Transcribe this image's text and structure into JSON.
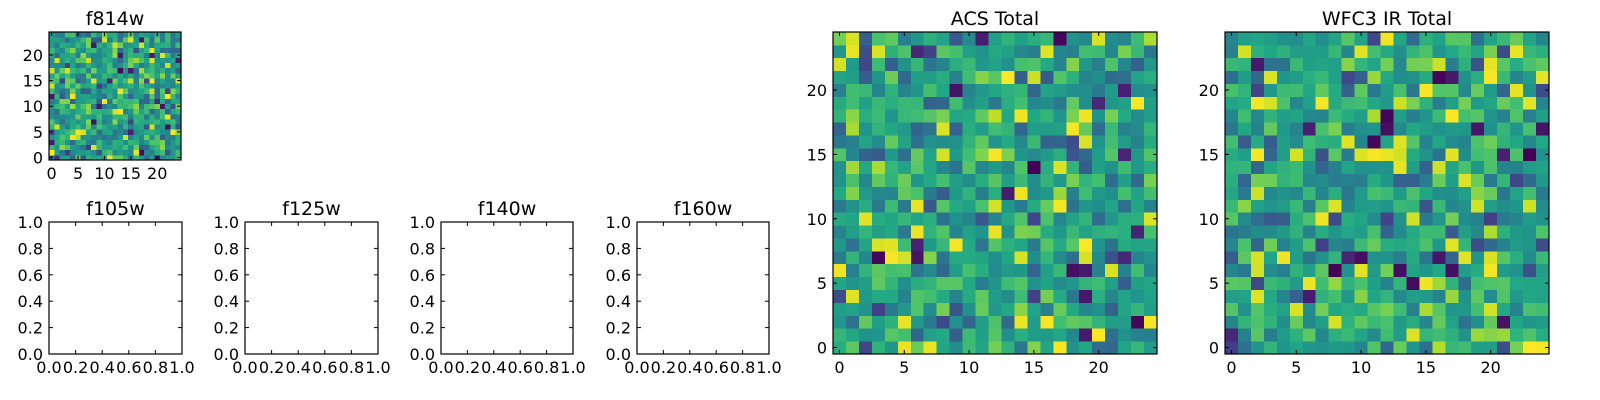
{
  "figure": {
    "background": "#ffffff",
    "colormap": "viridis"
  },
  "chart_data": [
    {
      "type": "heatmap",
      "title": "f814w",
      "xlabel": "",
      "ylabel": "",
      "xlim": [
        -0.5,
        24.5
      ],
      "ylim": [
        -0.5,
        24.5
      ],
      "grid_size": [
        25,
        25
      ],
      "xticks": [
        0,
        5,
        10,
        15,
        20
      ],
      "yticks": [
        0,
        5,
        10,
        15,
        20
      ],
      "colormap": "viridis",
      "value_range": [
        0,
        1
      ],
      "values_note": "noise-like values",
      "seed": 814
    },
    {
      "type": "scatter",
      "title": "f105w",
      "xlabel": "",
      "ylabel": "",
      "xlim": [
        0.0,
        1.0
      ],
      "ylim": [
        0.0,
        1.0
      ],
      "xticks": [
        "0.0",
        "0.2",
        "0.4",
        "0.6",
        "0.8",
        "1.0"
      ],
      "yticks": [
        "0.0",
        "0.2",
        "0.4",
        "0.6",
        "0.8",
        "1.0"
      ],
      "points": []
    },
    {
      "type": "scatter",
      "title": "f125w",
      "xlabel": "",
      "ylabel": "",
      "xlim": [
        0.0,
        1.0
      ],
      "ylim": [
        0.0,
        1.0
      ],
      "xticks": [
        "0.0",
        "0.2",
        "0.4",
        "0.6",
        "0.8",
        "1.0"
      ],
      "yticks": [
        "0.0",
        "0.2",
        "0.4",
        "0.6",
        "0.8",
        "1.0"
      ],
      "points": []
    },
    {
      "type": "scatter",
      "title": "f140w",
      "xlabel": "",
      "ylabel": "",
      "xlim": [
        0.0,
        1.0
      ],
      "ylim": [
        0.0,
        1.0
      ],
      "xticks": [
        "0.0",
        "0.2",
        "0.4",
        "0.6",
        "0.8",
        "1.0"
      ],
      "yticks": [
        "0.0",
        "0.2",
        "0.4",
        "0.6",
        "0.8",
        "1.0"
      ],
      "points": []
    },
    {
      "type": "scatter",
      "title": "f160w",
      "xlabel": "",
      "ylabel": "",
      "xlim": [
        0.0,
        1.0
      ],
      "ylim": [
        0.0,
        1.0
      ],
      "xticks": [
        "0.0",
        "0.2",
        "0.4",
        "0.6",
        "0.8",
        "1.0"
      ],
      "yticks": [
        "0.0",
        "0.2",
        "0.4",
        "0.6",
        "0.8",
        "1.0"
      ],
      "points": []
    },
    {
      "type": "heatmap",
      "title": "ACS Total",
      "xlabel": "",
      "ylabel": "",
      "xlim": [
        -0.5,
        24.5
      ],
      "ylim": [
        -0.5,
        24.5
      ],
      "grid_size": [
        25,
        25
      ],
      "xticks": [
        0,
        5,
        10,
        15,
        20
      ],
      "yticks": [
        0,
        5,
        10,
        15,
        20
      ],
      "colormap": "viridis",
      "value_range": [
        0,
        1
      ],
      "values_note": "noise-like values",
      "seed": 2101
    },
    {
      "type": "heatmap",
      "title": "WFC3 IR Total",
      "xlabel": "",
      "ylabel": "",
      "xlim": [
        -0.5,
        24.5
      ],
      "ylim": [
        -0.5,
        24.5
      ],
      "grid_size": [
        25,
        25
      ],
      "xticks": [
        0,
        5,
        10,
        15,
        20
      ],
      "yticks": [
        0,
        5,
        10,
        15,
        20
      ],
      "colormap": "viridis",
      "value_range": [
        0,
        1
      ],
      "values_note": "noise-like values",
      "seed": 3303
    }
  ]
}
